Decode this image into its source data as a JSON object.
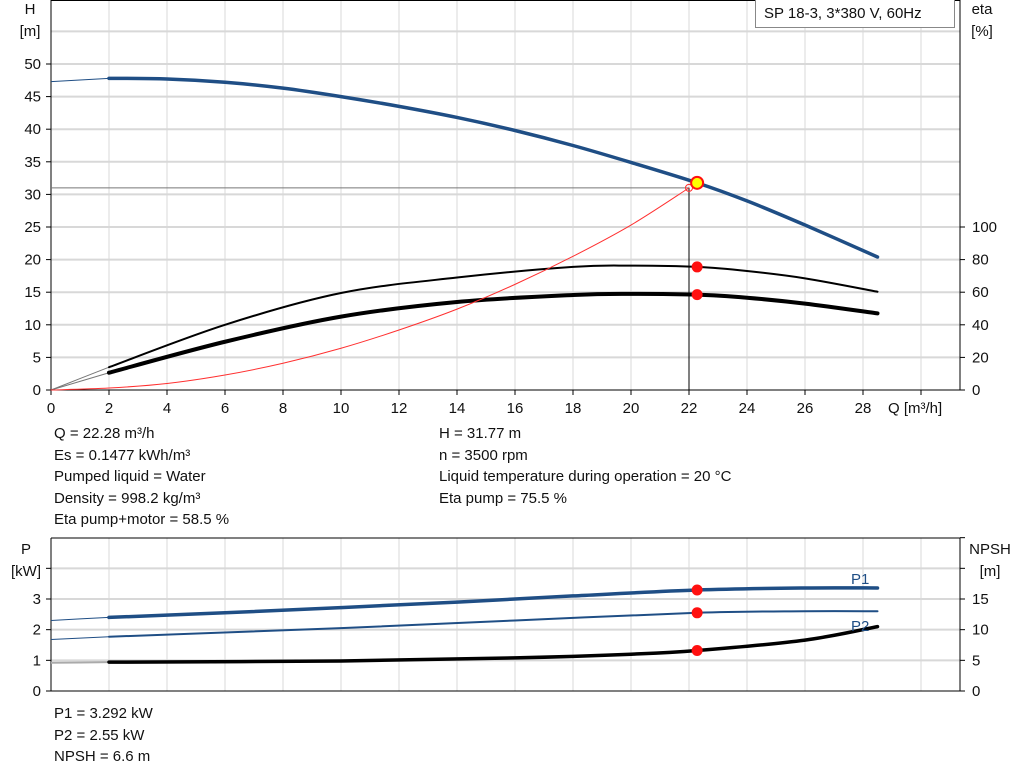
{
  "chart_data": [
    {
      "type": "line",
      "legend_box": "SP 18-3, 3*380 V, 60Hz",
      "xlabel": "Q [m³/h]",
      "ylabel_left": [
        "H",
        "[m]"
      ],
      "ylabel_right": [
        "eta",
        "[%]"
      ],
      "xlim": [
        0,
        31
      ],
      "ylim_left": [
        0,
        55
      ],
      "ylim_right": [
        0,
        137.5
      ],
      "x_ticks": [
        0,
        2,
        4,
        6,
        8,
        10,
        12,
        14,
        16,
        18,
        20,
        22,
        24,
        26,
        28
      ],
      "y_ticks_left": [
        0,
        5,
        10,
        15,
        20,
        25,
        30,
        35,
        40,
        45,
        50
      ],
      "y_ticks_right": [
        0,
        20,
        40,
        60,
        80,
        100
      ],
      "grid": true,
      "series": [
        {
          "key": "H",
          "axis": "left",
          "color": "#1f4e85",
          "width": 3.5,
          "x": [
            2,
            4,
            6,
            8,
            10,
            12,
            14,
            16,
            18,
            20,
            22.28,
            24,
            26,
            28.5
          ],
          "y": [
            47.8,
            47.7,
            47.2,
            46.3,
            45.0,
            43.5,
            41.8,
            39.8,
            37.5,
            34.9,
            31.77,
            29.0,
            25.3,
            20.4
          ],
          "extension": {
            "x": [
              0,
              2
            ],
            "y": [
              47.3,
              47.8
            ]
          }
        },
        {
          "key": "eta_pump",
          "axis": "right",
          "color": "#000000",
          "width": 2,
          "x": [
            2,
            6,
            10,
            14,
            18,
            20,
            22.28,
            24,
            26,
            28.5
          ],
          "y": [
            14,
            40,
            59.5,
            69,
            75.5,
            76.3,
            75.5,
            73,
            68.5,
            60.3
          ],
          "extension": {
            "x": [
              0,
              2
            ],
            "y": [
              0,
              14
            ]
          }
        },
        {
          "key": "eta_pump_motor",
          "axis": "right",
          "color": "#000000",
          "width": 4,
          "x": [
            2,
            6,
            10,
            14,
            18,
            20,
            22.28,
            24,
            26,
            28.5
          ],
          "y": [
            10.6,
            29.6,
            45,
            54,
            58.3,
            59,
            58.5,
            56.6,
            53,
            47
          ],
          "extension": {
            "x": [
              0,
              2
            ],
            "y": [
              0,
              10.6
            ]
          }
        },
        {
          "key": "system_curve",
          "axis": "left",
          "color": "#ff3030",
          "width": 1,
          "x": [
            0,
            2,
            4,
            6,
            8,
            10,
            12,
            14,
            16,
            18,
            20,
            22
          ],
          "y": [
            0,
            0.3,
            1.0,
            2.3,
            4.1,
            6.4,
            9.2,
            12.4,
            16.2,
            20.5,
            25.3,
            31.0
          ]
        }
      ],
      "operating_point": {
        "Q": 22.28,
        "H": 31.77,
        "eta_pump": 75.5,
        "eta_pump_motor": 58.5,
        "marker_color": "#ffff00",
        "ref_Q": 22,
        "ref_H": 31
      }
    },
    {
      "type": "line",
      "ylabel_left": [
        "P",
        "[kW]"
      ],
      "ylabel_right": [
        "NPSH",
        "[m]"
      ],
      "xlim": [
        0,
        31
      ],
      "ylim_left": [
        0,
        5
      ],
      "ylim_right": [
        0,
        25
      ],
      "y_ticks_left": [
        0,
        1,
        2,
        3
      ],
      "y_ticks_right": [
        0,
        5,
        10,
        15
      ],
      "grid": true,
      "series": [
        {
          "key": "P1",
          "name": "P1",
          "axis": "left",
          "color": "#1f4e85",
          "width": 3.5,
          "x": [
            2,
            6,
            10,
            14,
            18,
            22.28,
            26,
            28.5
          ],
          "y": [
            2.4,
            2.55,
            2.72,
            2.9,
            3.1,
            3.292,
            3.36,
            3.36
          ],
          "extension": {
            "x": [
              0,
              2
            ],
            "y": [
              2.3,
              2.4
            ]
          }
        },
        {
          "key": "P2",
          "name": "P2",
          "axis": "left",
          "color": "#1f4e85",
          "width": 2,
          "x": [
            2,
            10,
            16,
            22.28,
            26,
            28.5
          ],
          "y": [
            1.77,
            2.05,
            2.3,
            2.55,
            2.6,
            2.6
          ],
          "extension": {
            "x": [
              0,
              2
            ],
            "y": [
              1.68,
              1.77
            ]
          }
        },
        {
          "key": "NPSH",
          "axis": "right",
          "color": "#000000",
          "width": 3.5,
          "x": [
            2,
            10,
            16,
            20,
            22.28,
            26,
            28.5
          ],
          "y": [
            4.7,
            4.9,
            5.4,
            6.0,
            6.6,
            8.3,
            10.5
          ],
          "extension": {
            "x": [
              0,
              2
            ],
            "y": [
              4.6,
              4.7
            ]
          }
        }
      ],
      "operating_point": {
        "Q": 22.28,
        "P1": 3.292,
        "P2": 2.55,
        "NPSH": 6.6
      }
    }
  ],
  "info_top_left": [
    "Q = 22.28 m³/h",
    "Es = 0.1477 kWh/m³",
    "Pumped liquid = Water",
    "Density = 998.2 kg/m³",
    "Eta pump+motor = 58.5 %"
  ],
  "info_top_right": [
    "H = 31.77 m",
    "n = 3500 rpm",
    "Liquid temperature during operation = 20 °C",
    "Eta pump = 75.5 %"
  ],
  "info_bottom": [
    "P1 = 3.292 kW",
    "P2 = 2.55 kW",
    "NPSH = 6.6 m"
  ]
}
